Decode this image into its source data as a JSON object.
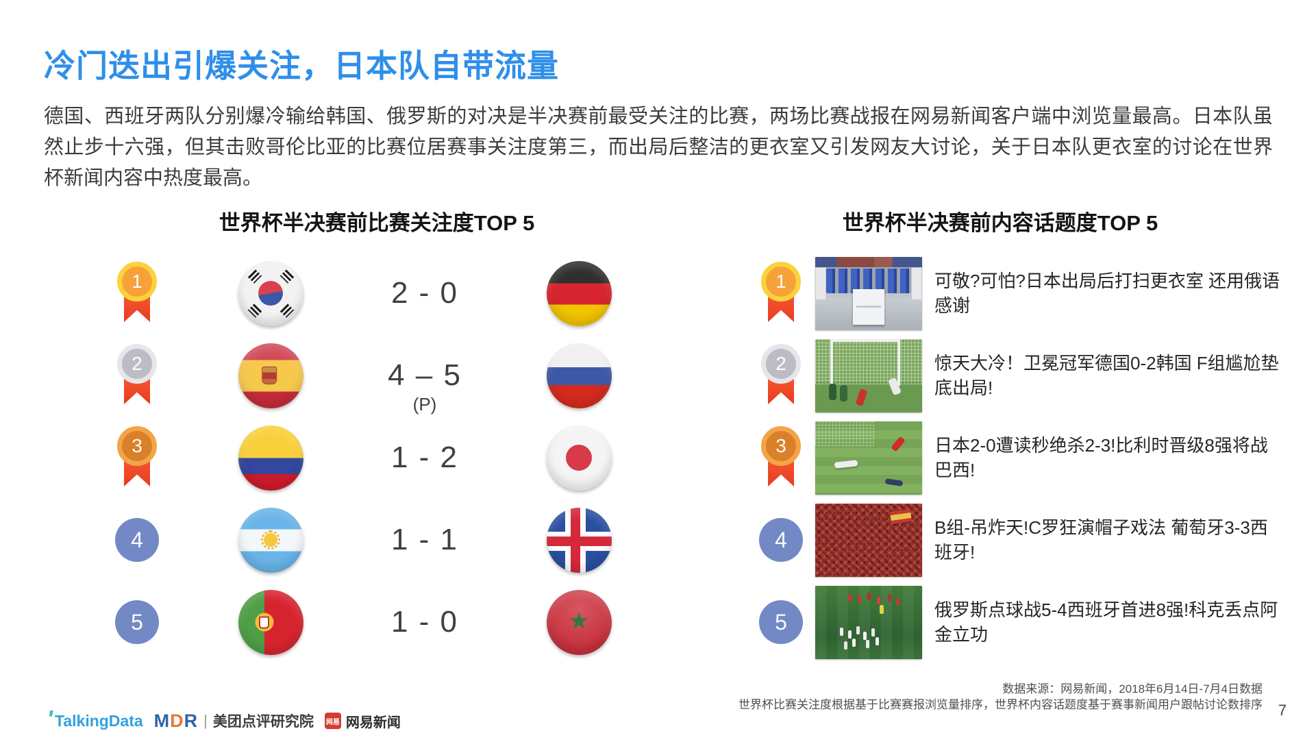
{
  "title": "冷门迭出引爆关注，日本队自带流量",
  "intro": "德国、西班牙两队分别爆冷输给韩国、俄罗斯的对决是半决赛前最受关注的比赛，两场比赛战报在网易新闻客户端中浏览量最高。日本队虽然止步十六强，但其击败哥伦比亚的比赛位居赛事关注度第三，而出局后整洁的更衣室又引发网友大讨论，关于日本队更衣室的讨论在世界杯新闻内容中热度最高。",
  "left_panel": {
    "header": "世界杯半决赛前比赛关注度TOP 5",
    "rows": [
      {
        "rank": "1",
        "rank_style": "gold-medal",
        "team1_flag": "south-korea-flag",
        "score": "2 - 0",
        "penalty_note": "",
        "team2_flag": "germany-flag"
      },
      {
        "rank": "2",
        "rank_style": "silver-medal",
        "team1_flag": "spain-flag",
        "score": "4 – 5",
        "penalty_note": "(P)",
        "team2_flag": "russia-flag"
      },
      {
        "rank": "3",
        "rank_style": "bronze-medal",
        "team1_flag": "colombia-flag",
        "score": "1 - 2",
        "penalty_note": "",
        "team2_flag": "japan-flag"
      },
      {
        "rank": "4",
        "rank_style": "blue-circle",
        "team1_flag": "argentina-flag",
        "score": "1 - 1",
        "penalty_note": "",
        "team2_flag": "iceland-flag"
      },
      {
        "rank": "5",
        "rank_style": "blue-circle",
        "team1_flag": "portugal-flag",
        "score": "1 - 0",
        "penalty_note": "",
        "team2_flag": "morocco-flag"
      }
    ]
  },
  "right_panel": {
    "header": "世界杯半决赛前内容话题度TOP 5",
    "rows": [
      {
        "rank": "1",
        "rank_style": "gold-medal",
        "thumb_icon": "locker-room-photo",
        "headline": "可敬?可怕?日本出局后打扫更衣室 还用俄语感谢"
      },
      {
        "rank": "2",
        "rank_style": "silver-medal",
        "thumb_icon": "germany-korea-match-photo",
        "headline": "惊天大冷！卫冕冠军德国0-2韩国 F组尴尬垫底出局!"
      },
      {
        "rank": "3",
        "rank_style": "bronze-medal",
        "thumb_icon": "japan-belgium-match-photo",
        "headline": "日本2-0遭读秒绝杀2-3!比利时晋级8强将战巴西!"
      },
      {
        "rank": "4",
        "rank_style": "blue-circle",
        "thumb_icon": "spain-fans-crowd-photo",
        "headline": "B组-吊炸天!C罗狂演帽子戏法 葡萄牙3-3西班牙!"
      },
      {
        "rank": "5",
        "rank_style": "blue-circle",
        "thumb_icon": "russia-celebration-photo",
        "headline": "俄罗斯点球战5-4西班牙首进8强!科克丢点阿金立功"
      }
    ]
  },
  "footer": {
    "source_line1": "数据来源：网易新闻，2018年6月14日-7月4日数据",
    "source_line2": "世界杯比赛关注度根据基于比赛赛报浏览量排序，世界杯内容话题度基于赛事新闻用户跟帖讨论数排序",
    "page_number": "7",
    "logos": {
      "talkingdata": "TalkingData",
      "mdr_m": "M",
      "mdr_d": "D",
      "mdr_r": "R",
      "mdr_divider": "|",
      "mdr_label": "美团点评研究院",
      "netease_badge": "网易",
      "netease_label": "网易新闻"
    }
  },
  "symbols": {
    "morocco_star": "★"
  },
  "colors": {
    "title_blue": "#2E8FE9",
    "medal_gold": "#F7A13B",
    "medal_silver": "#BCBCC4",
    "medal_bronze": "#D9812A",
    "ribbon_red": "#E83B22",
    "rank_blue": "#7289C5",
    "score_gray": "#404040"
  }
}
